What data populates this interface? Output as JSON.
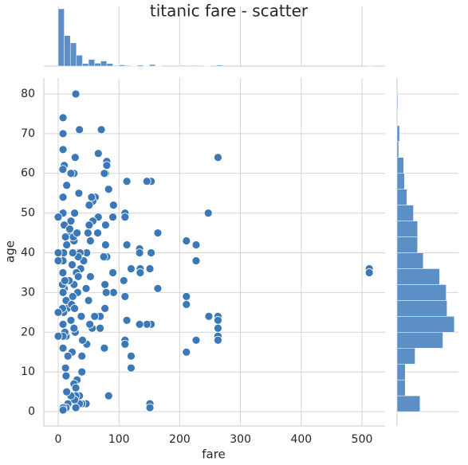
{
  "chart_data": {
    "type": "scatter",
    "title": "titanic fare - scatter",
    "x_label": "fare",
    "y_label": "age",
    "color": "#3a78b8",
    "x": [
      512,
      512,
      263,
      263,
      263,
      263,
      263,
      263,
      247,
      248,
      227,
      227,
      227,
      211,
      211,
      211,
      211,
      164,
      164,
      153,
      146,
      153,
      151,
      151,
      151,
      153,
      146,
      134,
      134,
      135,
      135,
      134,
      120,
      120,
      120,
      113,
      110,
      110,
      110,
      110,
      113,
      113,
      110,
      108,
      91,
      91,
      90,
      90,
      83,
      83,
      80,
      80,
      80,
      79,
      78,
      78,
      78,
      77,
      77,
      76,
      76,
      75,
      71,
      69,
      69,
      66,
      66,
      65,
      61,
      60,
      57,
      57,
      56,
      55,
      53,
      53,
      52,
      51,
      51,
      50,
      49,
      47,
      47,
      46,
      46,
      42,
      40,
      39,
      39,
      39,
      38,
      37,
      36,
      35,
      35,
      35,
      34,
      33,
      32,
      31,
      30,
      29,
      29,
      29,
      28,
      28,
      27,
      27,
      26,
      26,
      26,
      26,
      26,
      24,
      24,
      23,
      21,
      21,
      21,
      21,
      20,
      18,
      16,
      16,
      15,
      14,
      14,
      13,
      13,
      13,
      13,
      12,
      11,
      10,
      10,
      10,
      9,
      9,
      8,
      8,
      8,
      8,
      8,
      8,
      8,
      8,
      8,
      8,
      8,
      7.8,
      7.7,
      7.2,
      7,
      0,
      0,
      0,
      0,
      0,
      19,
      23,
      22,
      11,
      8,
      14,
      12,
      29,
      25,
      33,
      27,
      31
    ],
    "values": [
      36,
      35,
      64,
      24,
      23,
      21,
      19,
      18,
      50,
      24,
      42,
      38,
      18,
      43,
      29,
      27,
      15,
      45,
      31,
      58,
      58,
      40,
      36,
      2,
      1,
      22,
      22,
      41,
      40,
      36,
      35,
      22,
      36,
      14,
      11,
      58,
      50,
      49,
      18,
      17,
      23,
      42,
      29,
      33,
      52,
      30,
      35,
      49,
      56,
      4,
      63,
      62,
      39,
      30,
      60,
      47,
      42,
      26,
      32,
      60,
      16,
      39,
      71,
      24,
      21,
      65,
      49,
      45,
      54,
      24,
      53,
      48,
      21,
      54,
      43,
      34,
      22,
      52,
      47,
      28,
      45,
      40,
      17,
      31,
      2,
      38,
      18,
      14,
      10,
      2,
      24,
      36,
      40,
      71,
      4,
      2,
      55,
      39,
      30,
      8,
      35,
      80,
      1,
      4,
      64,
      20,
      50,
      3,
      60,
      43,
      32,
      21,
      7,
      40,
      29,
      15,
      60,
      48,
      23,
      4,
      45,
      33,
      14,
      2,
      26,
      57,
      42,
      28,
      19,
      9,
      1,
      44,
      20,
      62,
      47,
      31,
      25,
      40,
      74,
      70,
      66,
      54,
      50,
      38,
      30,
      22,
      19,
      16,
      1,
      35,
      61,
      26,
      32,
      49,
      40,
      38,
      25,
      19,
      46,
      37,
      27,
      33,
      0.42,
      5,
      11,
      6,
      44,
      34,
      26,
      45
    ],
    "xlim": [
      -23.6,
      538
    ],
    "ylim": [
      -3.6,
      84
    ],
    "xticks": [
      0,
      100,
      200,
      300,
      400,
      500
    ],
    "yticks": [
      0,
      10,
      20,
      30,
      40,
      50,
      60,
      70,
      80
    ],
    "grid": true,
    "x_hist": {
      "color": "#5b8fc6",
      "bins": [
        0,
        10,
        20,
        30,
        40,
        50,
        60,
        70,
        80,
        90,
        100,
        110,
        120,
        130,
        140,
        150,
        160,
        170,
        180,
        190,
        200,
        210,
        220,
        230,
        240,
        250,
        260,
        270,
        280,
        290,
        300,
        310,
        320,
        330,
        340,
        350,
        360,
        370,
        380,
        390,
        400,
        410,
        420,
        430,
        440,
        450,
        460,
        470,
        480,
        490,
        500,
        510,
        520
      ],
      "counts": [
        336,
        179,
        136,
        64,
        15,
        39,
        17,
        30,
        15,
        4,
        7,
        4,
        2,
        6,
        2,
        9,
        2,
        0,
        0,
        0,
        4,
        0,
        4,
        0,
        2,
        0,
        6,
        0,
        0,
        0,
        0,
        0,
        0,
        0,
        0,
        0,
        0,
        0,
        0,
        0,
        0,
        0,
        0,
        0,
        0,
        0,
        0,
        0,
        0,
        0,
        0,
        3
      ],
      "lim": [
        0,
        350
      ]
    },
    "y_hist": {
      "color": "#5b8fc6",
      "bins": [
        0,
        4,
        8,
        12,
        16,
        20,
        24,
        28,
        32,
        36,
        40,
        44,
        48,
        52,
        56,
        60,
        64,
        68,
        72,
        76,
        80
      ],
      "counts": [
        28,
        10,
        10,
        22,
        56,
        70,
        61,
        60,
        52,
        32,
        25,
        25,
        20,
        12,
        9,
        8,
        2,
        3,
        0,
        1
      ],
      "lim": [
        0,
        75
      ]
    }
  }
}
